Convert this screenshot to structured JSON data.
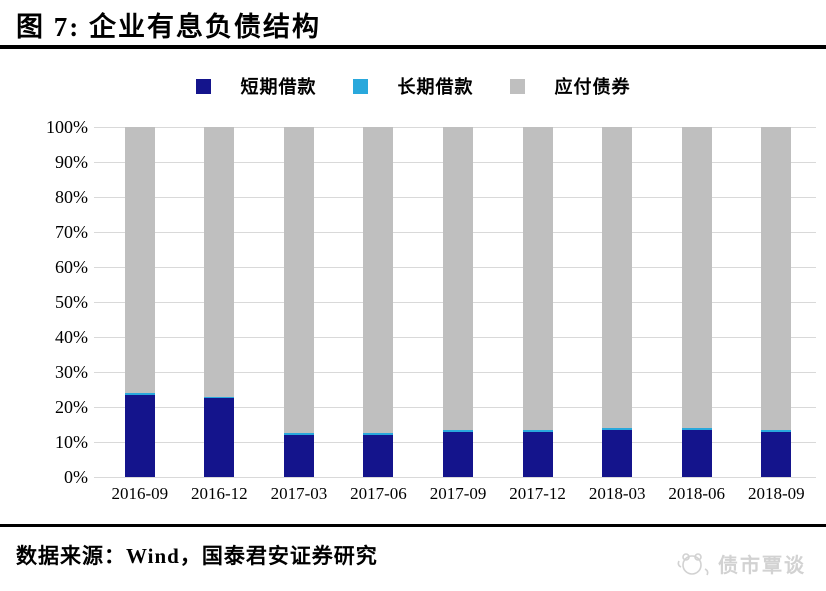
{
  "header": {
    "title": "图 7: 企业有息负债结构"
  },
  "chart_data": {
    "type": "bar",
    "stacked": true,
    "title": "企业有息负债结构",
    "categories": [
      "2016-09",
      "2016-12",
      "2017-03",
      "2017-06",
      "2017-09",
      "2017-12",
      "2018-03",
      "2018-06",
      "2018-09"
    ],
    "series": [
      {
        "name": "短期借款",
        "color": "#14148C",
        "values": [
          23.5,
          22.5,
          12,
          12,
          13,
          13,
          13.5,
          13.5,
          13
        ]
      },
      {
        "name": "长期借款",
        "color": "#29A8DC",
        "values": [
          0.5,
          0.5,
          0.5,
          0.5,
          0.5,
          0.5,
          0.5,
          0.5,
          0.5
        ]
      },
      {
        "name": "应付债券",
        "color": "#BFBFBF",
        "values": [
          76,
          77,
          87.5,
          87.5,
          86.5,
          86.5,
          86,
          86,
          86.5
        ]
      }
    ],
    "xlabel": "",
    "ylabel": "",
    "ylim": [
      0,
      100
    ],
    "y_ticks": [
      "100%",
      "90%",
      "80%",
      "70%",
      "60%",
      "50%",
      "40%",
      "30%",
      "20%",
      "10%",
      "0%"
    ],
    "grid": true,
    "legend_position": "top",
    "gridline_color": "#D9D9D9"
  },
  "footer": {
    "source": "数据来源：Wind，国泰君安证券研究"
  },
  "watermark": {
    "label": "债市覃谈",
    "icon": "panda-logo-icon"
  }
}
